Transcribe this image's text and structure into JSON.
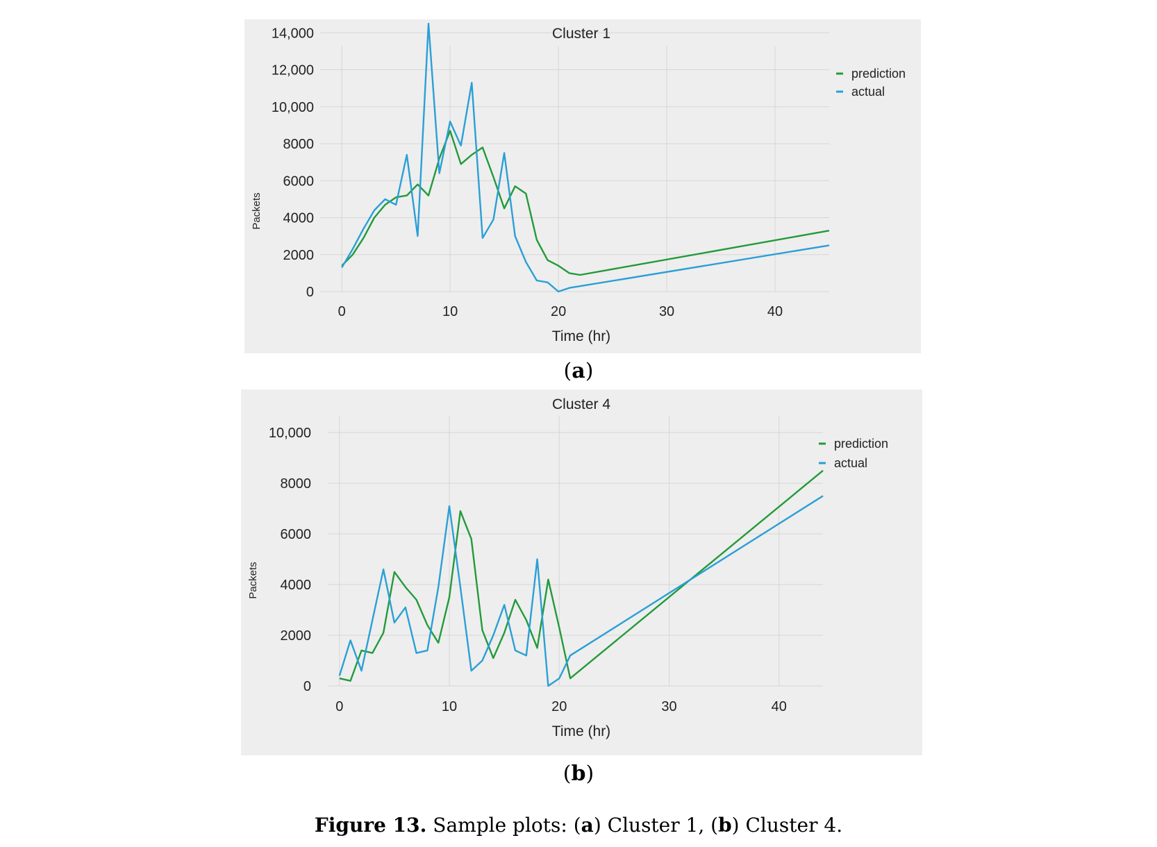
{
  "chart_data": [
    {
      "type": "line",
      "title": "Cluster 1",
      "xlabel": "Time (hr)",
      "ylabel": "Packets",
      "xlim": [
        -2,
        45
      ],
      "ylim": [
        0,
        14500
      ],
      "xticks": [
        0,
        10,
        20,
        30,
        40
      ],
      "xtick_labels": [
        "0",
        "10",
        "20",
        "30",
        "40"
      ],
      "yticks": [
        0,
        2000,
        4000,
        6000,
        8000,
        10000,
        12000,
        14000
      ],
      "ytick_labels": [
        "0",
        "2000",
        "4000",
        "6000",
        "8000",
        "10,000",
        "12,000",
        "14,000"
      ],
      "grid": true,
      "legend_position": "top-right",
      "series": [
        {
          "name": "prediction",
          "color": "#229a3a",
          "x": [
            0,
            1,
            2,
            3,
            4,
            5,
            6,
            7,
            8,
            9,
            10,
            11,
            12,
            13,
            14,
            15,
            16,
            17,
            18,
            19,
            20,
            21,
            22,
            45
          ],
          "y": [
            1400,
            2000,
            2900,
            4000,
            4700,
            5100,
            5200,
            5800,
            5200,
            7200,
            8700,
            6900,
            7400,
            7800,
            6200,
            4500,
            5700,
            5300,
            2800,
            1700,
            1400,
            1000,
            900,
            3300
          ]
        },
        {
          "name": "actual",
          "color": "#2a9fd6",
          "x": [
            0,
            1,
            2,
            3,
            4,
            5,
            6,
            7,
            8,
            9,
            10,
            11,
            12,
            13,
            14,
            15,
            16,
            17,
            18,
            19,
            20,
            21,
            45
          ],
          "y": [
            1300,
            2300,
            3400,
            4400,
            5000,
            4700,
            7400,
            3000,
            14500,
            6400,
            9200,
            7900,
            11300,
            2900,
            3900,
            7500,
            3000,
            1600,
            600,
            500,
            0,
            200,
            2500
          ]
        }
      ]
    },
    {
      "type": "line",
      "title": "Cluster 4",
      "xlabel": "Time (hr)",
      "ylabel": "Packets",
      "xlim": [
        -1,
        44
      ],
      "ylim": [
        0,
        10000
      ],
      "xticks": [
        0,
        10,
        20,
        30,
        40
      ],
      "xtick_labels": [
        "0",
        "10",
        "20",
        "30",
        "40"
      ],
      "yticks": [
        0,
        2000,
        4000,
        6000,
        8000,
        10000
      ],
      "ytick_labels": [
        "0",
        "2000",
        "4000",
        "6000",
        "8000",
        "10,000"
      ],
      "grid": true,
      "legend_position": "top-right",
      "series": [
        {
          "name": "prediction",
          "color": "#229a3a",
          "x": [
            0,
            1,
            2,
            3,
            4,
            5,
            6,
            7,
            8,
            9,
            10,
            11,
            12,
            13,
            14,
            15,
            16,
            17,
            18,
            19,
            20,
            21,
            44
          ],
          "y": [
            300,
            200,
            1400,
            1300,
            2100,
            4500,
            3900,
            3400,
            2400,
            1700,
            3500,
            6900,
            5800,
            2200,
            1100,
            2100,
            3400,
            2600,
            1500,
            4200,
            2300,
            300,
            8500
          ]
        },
        {
          "name": "actual",
          "color": "#2a9fd6",
          "x": [
            0,
            1,
            2,
            3,
            4,
            5,
            6,
            7,
            8,
            9,
            10,
            11,
            12,
            13,
            14,
            15,
            16,
            17,
            18,
            19,
            20,
            21,
            44
          ],
          "y": [
            400,
            1800,
            600,
            2600,
            4600,
            2500,
            3100,
            1300,
            1400,
            3900,
            7100,
            3900,
            600,
            1000,
            2000,
            3200,
            1400,
            1200,
            5000,
            0,
            300,
            1200,
            7500
          ]
        }
      ]
    }
  ],
  "sub_labels": {
    "a": {
      "open": "(",
      "letter": "a",
      "close": ")"
    },
    "b": {
      "open": "(",
      "letter": "b",
      "close": ")"
    }
  },
  "caption": {
    "label": "Figure 13.",
    "text_1": " Sample plots:  (",
    "a": "a",
    "text_2": ") Cluster 1, (",
    "b": "b",
    "text_3": ") Cluster 4."
  }
}
